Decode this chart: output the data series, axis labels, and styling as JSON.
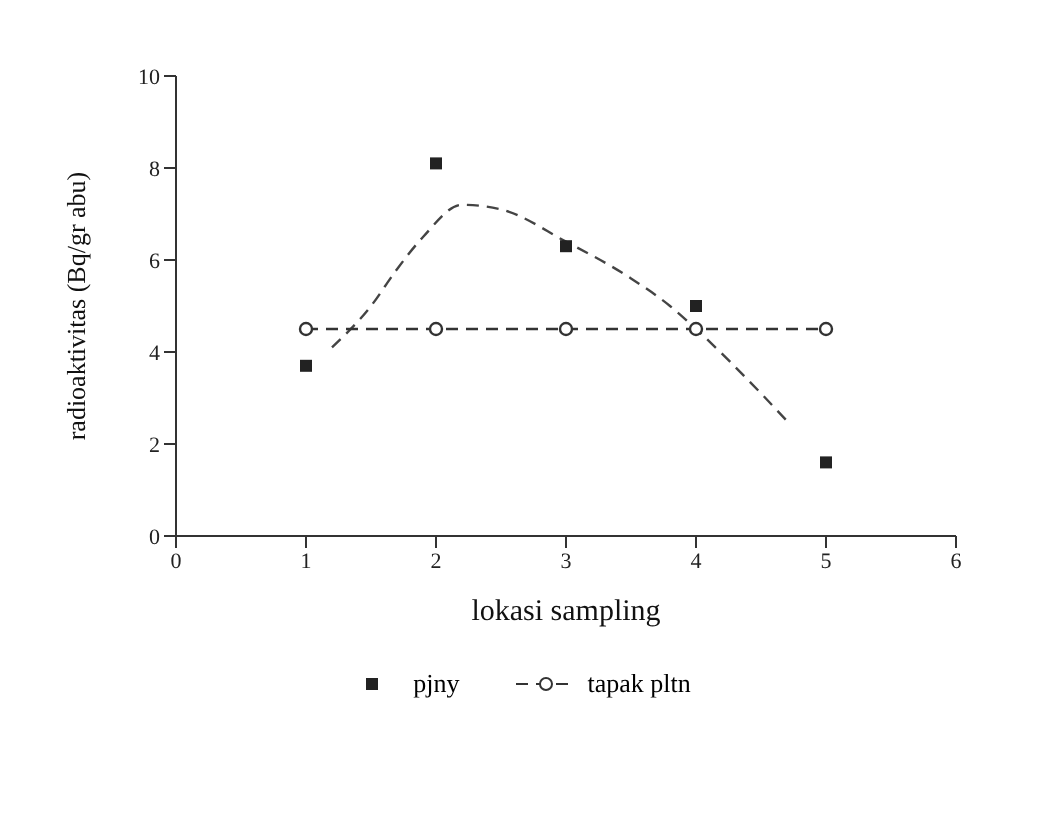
{
  "chart_data": {
    "type": "line",
    "xlabel": "lokasi sampling",
    "ylabel": "radioaktivitas (Bq/gr abu)",
    "xlim": [
      0,
      6
    ],
    "xticks": [
      0,
      1,
      2,
      3,
      4,
      5,
      6
    ],
    "ylim": [
      0,
      10
    ],
    "yticks": [
      0,
      2,
      4,
      6,
      8,
      10
    ],
    "grid": false,
    "legend": "bottom",
    "series": [
      {
        "name": "pjny",
        "type": "scatter",
        "marker": "square",
        "color": "#222222",
        "x": [
          1,
          2,
          3,
          4,
          5
        ],
        "values": [
          3.7,
          8.1,
          6.3,
          5.0,
          1.6
        ]
      },
      {
        "marker": "none",
        "color": "#444444",
        "line_style": "dashed",
        "x": [
          1.2,
          1.5,
          1.7,
          1.9,
          2.2,
          2.5,
          3,
          3.5,
          3.8,
          4,
          4.5,
          4.7
        ],
        "values": [
          4.1,
          5.0,
          5.8,
          6.5,
          7.2,
          7.1,
          6.4,
          5.6,
          5.0,
          4.5,
          3.1,
          2.5
        ]
      },
      {
        "name": "tapak pltn",
        "color": "#333333",
        "line_style": "dashed",
        "marker": "circle",
        "x": [
          1,
          2,
          3,
          4,
          5
        ],
        "values": [
          4.5,
          4.5,
          4.5,
          4.5,
          4.5
        ]
      }
    ]
  }
}
